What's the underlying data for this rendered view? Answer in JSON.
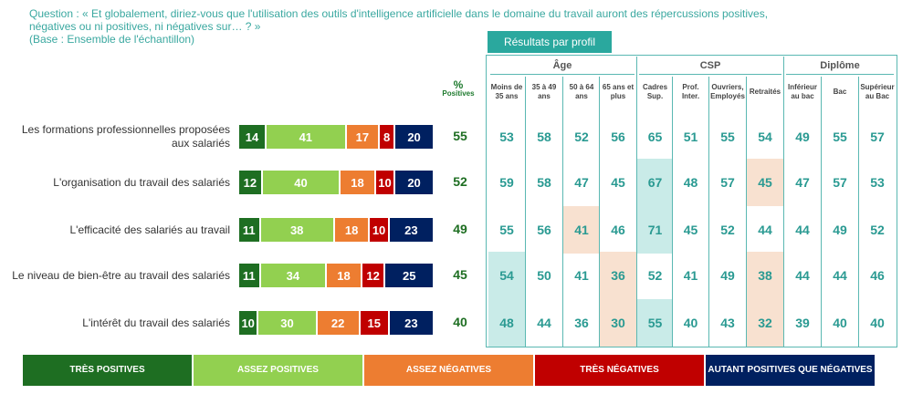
{
  "question": {
    "line1": "Question : « Et globalement, diriez-vous que l'utilisation des outils d'intelligence artificielle dans le domaine du travail auront des répercussions positives,",
    "line2": "négatives ou ni positives, ni négatives sur… ? »",
    "line3": "(Base : Ensemble de l'échantillon)"
  },
  "profile_title": "Résultats par profil",
  "positives_header": {
    "pct": "%",
    "label": "Positives"
  },
  "colors": {
    "tres_positives": "#1e6e22",
    "assez_positives": "#92d050",
    "assez_negatives": "#ed7d31",
    "tres_negatives": "#c00000",
    "autant": "#002060",
    "accent": "#2aa89e"
  },
  "groups": [
    {
      "name": "Âge",
      "cols": [
        0,
        3
      ]
    },
    {
      "name": "CSP",
      "cols": [
        4,
        7
      ]
    },
    {
      "name": "Diplôme",
      "cols": [
        8,
        10
      ]
    }
  ],
  "columns": [
    "Moins de 35 ans",
    "35 à 49 ans",
    "50 à 64 ans",
    "65 ans et plus",
    "Cadres Sup.",
    "Prof. Inter.",
    "Ouvriers, Employés",
    "Retraités",
    "Inférieur au bac",
    "Bac",
    "Supérieur au Bac"
  ],
  "chart_data": {
    "type": "bar",
    "orientation": "horizontal-stacked",
    "categories": [
      "Les formations professionnelles proposées aux salariés",
      "L'organisation du travail des salariés",
      "L'efficacité des salariés au travail",
      "Le niveau de bien-être au travail des salariés",
      "L'intérêt du travail des salariés"
    ],
    "series": [
      {
        "name": "TRÈS POSITIVES",
        "values": [
          14,
          12,
          11,
          11,
          10
        ]
      },
      {
        "name": "ASSEZ POSITIVES",
        "values": [
          41,
          40,
          38,
          34,
          30
        ]
      },
      {
        "name": "ASSEZ NÉGATIVES",
        "values": [
          17,
          18,
          18,
          18,
          22
        ]
      },
      {
        "name": "TRÈS NÉGATIVES",
        "values": [
          8,
          10,
          10,
          12,
          15
        ]
      },
      {
        "name": "AUTANT POSITIVES QUE NÉGATIVES",
        "values": [
          20,
          20,
          23,
          25,
          23
        ]
      }
    ],
    "positives": [
      55,
      52,
      49,
      45,
      40
    ],
    "profile_values": [
      [
        53,
        58,
        52,
        56,
        65,
        51,
        55,
        54,
        49,
        55,
        57
      ],
      [
        59,
        58,
        47,
        45,
        67,
        48,
        57,
        45,
        47,
        57,
        53
      ],
      [
        55,
        56,
        41,
        46,
        71,
        45,
        52,
        44,
        44,
        49,
        52
      ],
      [
        54,
        50,
        41,
        36,
        52,
        41,
        49,
        38,
        44,
        44,
        46
      ],
      [
        48,
        44,
        36,
        30,
        55,
        40,
        43,
        32,
        39,
        40,
        40
      ]
    ],
    "highlights": [
      {
        "row": 1,
        "col": 4,
        "kind": "above"
      },
      {
        "row": 2,
        "col": 4,
        "kind": "above"
      },
      {
        "row": 3,
        "col": 0,
        "kind": "above"
      },
      {
        "row": 4,
        "col": 0,
        "kind": "above"
      },
      {
        "row": 4,
        "col": 4,
        "kind": "above"
      },
      {
        "row": 1,
        "col": 7,
        "kind": "below"
      },
      {
        "row": 2,
        "col": 2,
        "kind": "below"
      },
      {
        "row": 3,
        "col": 3,
        "kind": "below"
      },
      {
        "row": 3,
        "col": 7,
        "kind": "below"
      },
      {
        "row": 4,
        "col": 3,
        "kind": "below"
      },
      {
        "row": 4,
        "col": 7,
        "kind": "below"
      }
    ],
    "xlim": [
      0,
      100
    ]
  }
}
